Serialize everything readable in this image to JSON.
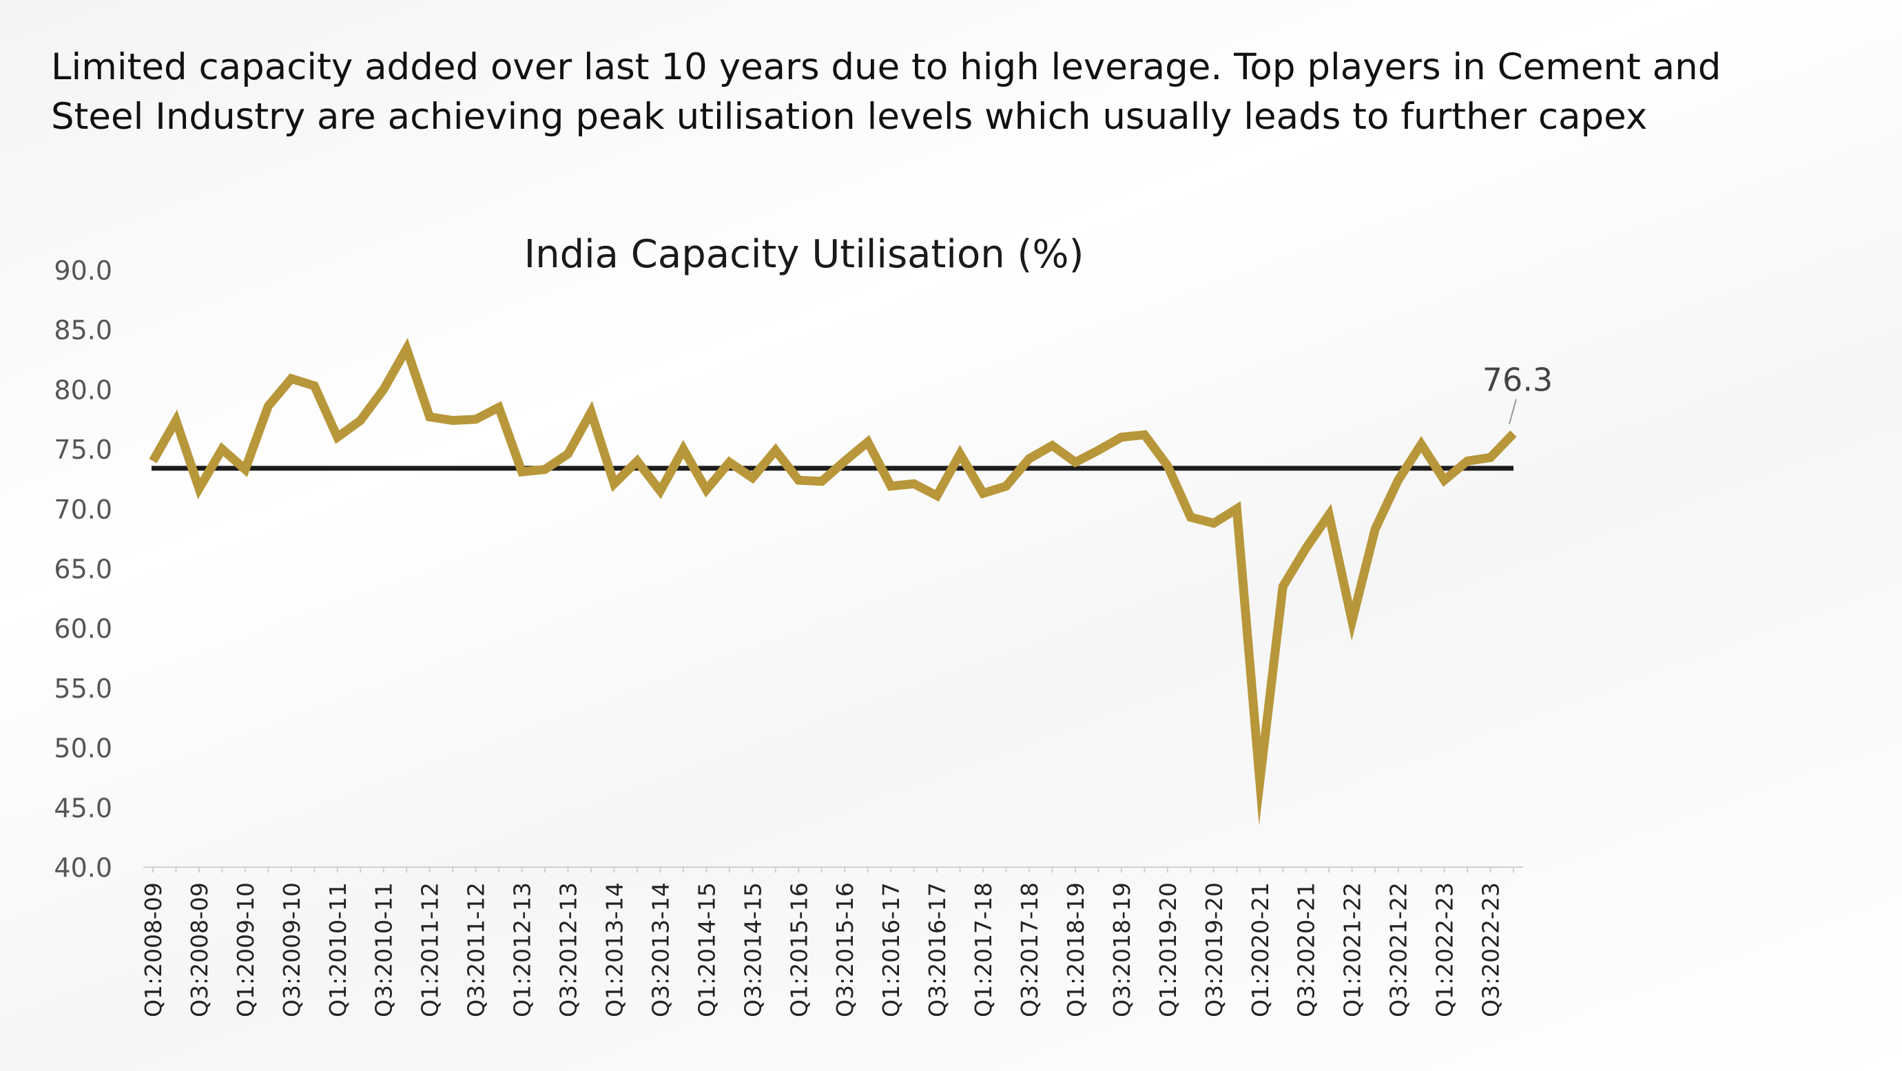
{
  "headline": {
    "line1": "Limited capacity added over last 10 years due to high leverage. Top players in Cement and",
    "line2": "Steel Industry are achieving peak utilisation levels which usually leads to further capex"
  },
  "colors": {
    "series": "#B8973A",
    "average_line": "#1c1c1c",
    "axis_text": "#555555",
    "annotation": "#444444"
  },
  "chart_data": {
    "type": "line",
    "title": "India Capacity Utilisation (%)",
    "xlabel": "",
    "ylabel": "",
    "ylim": [
      40,
      90
    ],
    "yticks": [
      "40.0",
      "45.0",
      "50.0",
      "55.0",
      "60.0",
      "65.0",
      "70.0",
      "75.0",
      "80.0",
      "85.0",
      "90.0"
    ],
    "grid": false,
    "legend": "none",
    "x": [
      "Q1:2008-09",
      "Q2:2008-09",
      "Q3:2008-09",
      "Q4:2008-09",
      "Q1:2009-10",
      "Q2:2009-10",
      "Q3:2009-10",
      "Q4:2009-10",
      "Q1:2010-11",
      "Q2:2010-11",
      "Q3:2010-11",
      "Q4:2010-11",
      "Q1:2011-12",
      "Q2:2011-12",
      "Q3:2011-12",
      "Q4:2011-12",
      "Q1:2012-13",
      "Q2:2012-13",
      "Q3:2012-13",
      "Q4:2012-13",
      "Q1:2013-14",
      "Q2:2013-14",
      "Q3:2013-14",
      "Q4:2013-14",
      "Q1:2014-15",
      "Q2:2014-15",
      "Q3:2014-15",
      "Q4:2014-15",
      "Q1:2015-16",
      "Q2:2015-16",
      "Q3:2015-16",
      "Q4:2015-16",
      "Q1:2016-17",
      "Q2:2016-17",
      "Q3:2016-17",
      "Q4:2016-17",
      "Q1:2017-18",
      "Q2:2017-18",
      "Q3:2017-18",
      "Q4:2017-18",
      "Q1:2018-19",
      "Q2:2018-19",
      "Q3:2018-19",
      "Q4:2018-19",
      "Q1:2019-20",
      "Q2:2019-20",
      "Q3:2019-20",
      "Q4:2019-20",
      "Q1:2020-21",
      "Q2:2020-21",
      "Q3:2020-21",
      "Q4:2020-21",
      "Q1:2021-22",
      "Q2:2021-22",
      "Q3:2021-22",
      "Q4:2021-22",
      "Q1:2022-23",
      "Q2:2022-23",
      "Q3:2022-23",
      "Q4:2022-23"
    ],
    "xtick_labels": [
      "Q1:2008-09",
      "Q3:2008-09",
      "Q1:2009-10",
      "Q3:2009-10",
      "Q1:2010-11",
      "Q3:2010-11",
      "Q1:2011-12",
      "Q3:2011-12",
      "Q1:2012-13",
      "Q3:2012-13",
      "Q1:2013-14",
      "Q3:2013-14",
      "Q1:2014-15",
      "Q3:2014-15",
      "Q1:2015-16",
      "Q3:2015-16",
      "Q1:2016-17",
      "Q3:2016-17",
      "Q1:2017-18",
      "Q3:2017-18",
      "Q1:2018-19",
      "Q3:2018-19",
      "Q1:2019-20",
      "Q3:2019-20",
      "Q1:2020-21",
      "Q3:2020-21",
      "Q1:2021-22",
      "Q3:2021-22",
      "Q1:2022-23",
      "Q3:2022-23"
    ],
    "series": [
      {
        "values": [
          74.0,
          77.4,
          71.7,
          75.0,
          73.3,
          78.6,
          80.9,
          80.3,
          76.0,
          77.4,
          80.0,
          83.4,
          77.7,
          77.4,
          77.5,
          78.5,
          73.1,
          73.3,
          74.6,
          78.1,
          72.1,
          74.0,
          71.5,
          75.0,
          71.6,
          73.9,
          72.6,
          74.9,
          72.4,
          72.3,
          74.0,
          75.6,
          71.9,
          72.1,
          71.1,
          74.6,
          71.3,
          71.9,
          74.2,
          75.3,
          73.9,
          74.9,
          76.0,
          76.2,
          73.6,
          69.3,
          68.8,
          70.0,
          47.2,
          63.5,
          66.7,
          69.5,
          60.6,
          68.3,
          72.4,
          75.4,
          72.4,
          74.0,
          74.3,
          76.3
        ]
      }
    ],
    "average_line_value": 73.4,
    "annotation": {
      "label": "76.3",
      "x": "Q4:2022-23",
      "y": 76.3
    }
  }
}
